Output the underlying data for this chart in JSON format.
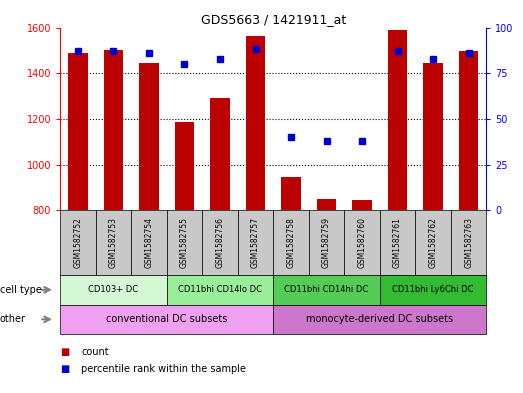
{
  "title": "GDS5663 / 1421911_at",
  "samples": [
    "GSM1582752",
    "GSM1582753",
    "GSM1582754",
    "GSM1582755",
    "GSM1582756",
    "GSM1582757",
    "GSM1582758",
    "GSM1582759",
    "GSM1582760",
    "GSM1582761",
    "GSM1582762",
    "GSM1582763"
  ],
  "counts": [
    1490,
    1500,
    1445,
    1185,
    1290,
    1565,
    945,
    850,
    845,
    1590,
    1445,
    1495
  ],
  "percentile_ranks": [
    87,
    87,
    86,
    80,
    83,
    88,
    40,
    38,
    38,
    87,
    83,
    86
  ],
  "ymin": 800,
  "ymax": 1600,
  "yticks_left": [
    800,
    1000,
    1200,
    1400,
    1600
  ],
  "yticks_right": [
    0,
    25,
    50,
    75,
    100
  ],
  "cell_types": [
    {
      "label": "CD103+ DC",
      "start": 0,
      "end": 3,
      "color": "#d4f7d4"
    },
    {
      "label": "CD11bhi CD14lo DC",
      "start": 3,
      "end": 6,
      "color": "#99ee99"
    },
    {
      "label": "CD11bhi CD14hi DC",
      "start": 6,
      "end": 9,
      "color": "#55cc55"
    },
    {
      "label": "CD11bhi Ly6Chi DC",
      "start": 9,
      "end": 12,
      "color": "#33bb33"
    }
  ],
  "other_groups": [
    {
      "label": "conventional DC subsets",
      "start": 0,
      "end": 6,
      "color": "#f0a0f0"
    },
    {
      "label": "monocyte-derived DC subsets",
      "start": 6,
      "end": 12,
      "color": "#cc77cc"
    }
  ],
  "bar_color": "#bb0000",
  "dot_color": "#0000cc",
  "bar_width": 0.55,
  "grid_linestyle": "dotted",
  "tick_area_bg": "#c8c8c8",
  "legend_count_color": "#bb0000",
  "legend_dot_color": "#0000cc"
}
